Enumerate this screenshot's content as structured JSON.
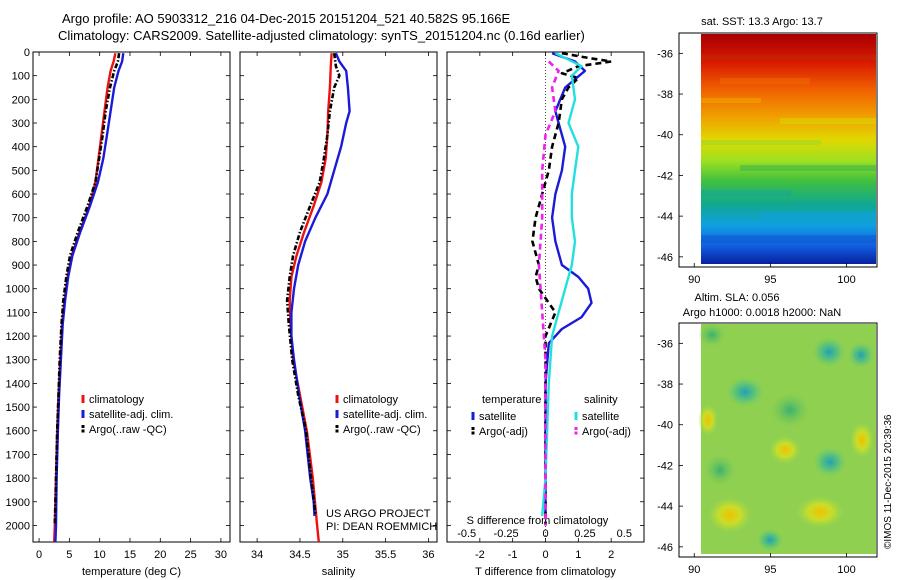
{
  "title": {
    "line1": "Argo profile: AO 5903312_216 04-Dec-2015 20151204_521 40.582S 95.166E",
    "line2": "Climatology: CARS2009. Satellite-adjusted climatology: synTS_20151204.nc (0.16d earlier)"
  },
  "colors": {
    "climatology": "#ee1111",
    "satellite": "#1a1ad8",
    "argo": "#000000",
    "salinity_sat": "#22e0e0",
    "salinity_argo": "#ee22ee"
  },
  "depth_axis": {
    "ticks": [
      0,
      100,
      200,
      300,
      400,
      500,
      600,
      700,
      800,
      900,
      1000,
      1100,
      1200,
      1300,
      1400,
      1500,
      1600,
      1700,
      1800,
      1900,
      2000
    ],
    "range": [
      0,
      2070
    ]
  },
  "chart_data": [
    {
      "type": "line",
      "id": "temperature",
      "xlabel": "temperature (deg C)",
      "xlim": [
        -1,
        31.5
      ],
      "xticks": [
        0,
        5,
        10,
        15,
        20,
        25,
        30
      ],
      "legend": {
        "placement": "bottom-left",
        "entries": [
          "climatology",
          "satellite-adj. clim.",
          "Argo(..raw -QC)"
        ]
      },
      "series": [
        {
          "name": "climatology",
          "color_key": "climatology",
          "style": "solid",
          "points": [
            [
              12.6,
              5
            ],
            [
              12.3,
              40
            ],
            [
              11.8,
              80
            ],
            [
              11.3,
              150
            ],
            [
              10.8,
              250
            ],
            [
              10.3,
              350
            ],
            [
              9.8,
              450
            ],
            [
              9.3,
              550
            ],
            [
              8.3,
              650
            ],
            [
              6.7,
              760
            ],
            [
              5.4,
              860
            ],
            [
              4.7,
              950
            ],
            [
              4.2,
              1050
            ],
            [
              3.8,
              1150
            ],
            [
              3.5,
              1300
            ],
            [
              3.2,
              1450
            ],
            [
              3.0,
              1600
            ],
            [
              2.8,
              1800
            ],
            [
              2.6,
              2000
            ],
            [
              2.5,
              2070
            ]
          ]
        },
        {
          "name": "satellite-adj. clim.",
          "color_key": "satellite",
          "style": "solid",
          "points": [
            [
              13.9,
              5
            ],
            [
              13.7,
              40
            ],
            [
              13.1,
              80
            ],
            [
              12.4,
              150
            ],
            [
              11.8,
              250
            ],
            [
              11.2,
              350
            ],
            [
              10.6,
              450
            ],
            [
              9.7,
              550
            ],
            [
              8.4,
              650
            ],
            [
              6.8,
              760
            ],
            [
              5.5,
              860
            ],
            [
              4.8,
              950
            ],
            [
              4.3,
              1050
            ],
            [
              3.9,
              1150
            ],
            [
              3.6,
              1300
            ],
            [
              3.3,
              1450
            ],
            [
              3.1,
              1600
            ],
            [
              2.9,
              1800
            ],
            [
              2.8,
              2000
            ],
            [
              2.7,
              2070
            ]
          ]
        },
        {
          "name": "Argo(..raw -QC)",
          "color_key": "argo",
          "style": "dashdot",
          "points": [
            [
              13.2,
              5
            ],
            [
              13.0,
              40
            ],
            [
              12.4,
              80
            ],
            [
              11.7,
              150
            ],
            [
              11.0,
              250
            ],
            [
              10.5,
              350
            ],
            [
              9.9,
              450
            ],
            [
              9.3,
              550
            ],
            [
              8.0,
              650
            ],
            [
              6.4,
              760
            ],
            [
              5.1,
              860
            ],
            [
              4.5,
              950
            ],
            [
              4.0,
              1050
            ],
            [
              3.7,
              1150
            ],
            [
              3.4,
              1300
            ],
            [
              3.2,
              1450
            ],
            [
              3.0,
              1600
            ],
            [
              2.8,
              1800
            ],
            [
              2.6,
              2000
            ]
          ]
        }
      ]
    },
    {
      "type": "line",
      "id": "salinity",
      "xlabel": "salinity",
      "xlim": [
        33.8,
        36.1
      ],
      "xticks": [
        34,
        34.5,
        35,
        35.5,
        36
      ],
      "legend": {
        "placement": "bottom-right",
        "entries": [
          "climatology",
          "satellite-adj. clim.",
          "Argo(..raw -QC)"
        ]
      },
      "series": [
        {
          "name": "climatology",
          "color_key": "climatology",
          "style": "solid",
          "points": [
            [
              34.87,
              5
            ],
            [
              34.86,
              60
            ],
            [
              34.85,
              150
            ],
            [
              34.83,
              250
            ],
            [
              34.82,
              350
            ],
            [
              34.8,
              450
            ],
            [
              34.75,
              550
            ],
            [
              34.66,
              650
            ],
            [
              34.55,
              760
            ],
            [
              34.46,
              860
            ],
            [
              34.4,
              950
            ],
            [
              34.38,
              1050
            ],
            [
              34.39,
              1150
            ],
            [
              34.42,
              1300
            ],
            [
              34.5,
              1450
            ],
            [
              34.58,
              1600
            ],
            [
              34.65,
              1800
            ],
            [
              34.7,
              2000
            ],
            [
              34.72,
              2070
            ]
          ]
        },
        {
          "name": "satellite-adj. clim.",
          "color_key": "satellite",
          "style": "solid",
          "points": [
            [
              34.92,
              5
            ],
            [
              34.96,
              40
            ],
            [
              35.04,
              80
            ],
            [
              35.06,
              150
            ],
            [
              35.08,
              250
            ],
            [
              35.04,
              300
            ],
            [
              34.98,
              400
            ],
            [
              34.9,
              500
            ],
            [
              34.82,
              600
            ],
            [
              34.68,
              700
            ],
            [
              34.56,
              800
            ],
            [
              34.48,
              900
            ],
            [
              34.43,
              1000
            ],
            [
              34.4,
              1100
            ],
            [
              34.4,
              1200
            ],
            [
              34.43,
              1300
            ],
            [
              34.49,
              1450
            ],
            [
              34.56,
              1600
            ],
            [
              34.62,
              1800
            ],
            [
              34.66,
              1900
            ],
            [
              34.67,
              1960
            ]
          ]
        },
        {
          "name": "Argo(..raw -QC)",
          "color_key": "argo",
          "style": "dashdot",
          "points": [
            [
              34.9,
              5
            ],
            [
              34.92,
              60
            ],
            [
              34.96,
              100
            ],
            [
              34.9,
              150
            ],
            [
              34.85,
              250
            ],
            [
              34.82,
              350
            ],
            [
              34.78,
              450
            ],
            [
              34.73,
              550
            ],
            [
              34.62,
              650
            ],
            [
              34.5,
              760
            ],
            [
              34.42,
              860
            ],
            [
              34.38,
              950
            ],
            [
              34.35,
              1050
            ],
            [
              34.37,
              1150
            ],
            [
              34.41,
              1300
            ],
            [
              34.48,
              1450
            ],
            [
              34.57,
              1600
            ],
            [
              34.63,
              1800
            ],
            [
              34.68,
              1950
            ]
          ]
        }
      ]
    },
    {
      "type": "line",
      "id": "difference",
      "xlabel": "T difference from climatology",
      "top_axis_label": "S difference from climatology",
      "xlim": [
        -3,
        3
      ],
      "xticks": [
        -2,
        -1,
        0,
        1,
        2
      ],
      "top_ticks": [
        -0.5,
        -0.25,
        0,
        0.25,
        0.5
      ],
      "top_tick_labels": [
        "-0.5",
        "-0.25",
        "0",
        "0.25",
        "0.5"
      ],
      "legend": {
        "placement": "bottom",
        "temperature_header": "temperature",
        "salinity_header": "salinity",
        "entries": [
          "satellite",
          "Argo(-adj)",
          "satellite",
          "Argo(-adj)"
        ]
      },
      "series": [
        {
          "name": "satellite",
          "group": "temperature",
          "color_key": "satellite",
          "style": "solid",
          "points": [
            [
              0.2,
              5
            ],
            [
              0.9,
              40
            ],
            [
              1.2,
              80
            ],
            [
              0.6,
              150
            ],
            [
              0.3,
              250
            ],
            [
              0.4,
              300
            ],
            [
              0.6,
              400
            ],
            [
              0.5,
              500
            ],
            [
              0.3,
              600
            ],
            [
              0.2,
              700
            ],
            [
              0.3,
              800
            ],
            [
              0.5,
              900
            ],
            [
              1.0,
              950
            ],
            [
              1.3,
              1000
            ],
            [
              1.4,
              1060
            ],
            [
              1.1,
              1120
            ],
            [
              0.5,
              1170
            ],
            [
              0.1,
              1230
            ],
            [
              0.0,
              1400
            ],
            [
              0.0,
              1800
            ],
            [
              0.0,
              1960
            ]
          ]
        },
        {
          "name": "Argo(-adj)",
          "group": "temperature",
          "color_key": "argo",
          "style": "dashed",
          "points": [
            [
              0.5,
              5
            ],
            [
              1.3,
              25
            ],
            [
              2.0,
              40
            ],
            [
              1.0,
              60
            ],
            [
              0.5,
              90
            ],
            [
              1.0,
              110
            ],
            [
              0.7,
              150
            ],
            [
              0.5,
              200
            ],
            [
              0.4,
              300
            ],
            [
              0.2,
              400
            ],
            [
              0.1,
              500
            ],
            [
              -0.1,
              600
            ],
            [
              -0.3,
              700
            ],
            [
              -0.4,
              800
            ],
            [
              -0.2,
              900
            ],
            [
              -0.3,
              950
            ],
            [
              -0.2,
              1000
            ],
            [
              0.3,
              1100
            ],
            [
              0.0,
              1200
            ],
            [
              0.0,
              1400
            ],
            [
              0.0,
              2000
            ]
          ]
        },
        {
          "name": "satellite",
          "group": "salinity",
          "color_key": "salinity_sat",
          "style": "solid",
          "points": [
            [
              0.3,
              5
            ],
            [
              1.1,
              60
            ],
            [
              0.8,
              100
            ],
            [
              0.9,
              200
            ],
            [
              0.7,
              300
            ],
            [
              1.0,
              400
            ],
            [
              0.9,
              500
            ],
            [
              0.8,
              600
            ],
            [
              0.8,
              700
            ],
            [
              0.9,
              800
            ],
            [
              0.8,
              900
            ],
            [
              0.6,
              1000
            ],
            [
              0.4,
              1100
            ],
            [
              0.2,
              1200
            ],
            [
              0.1,
              1400
            ],
            [
              0.0,
              1800
            ],
            [
              -0.1,
              1960
            ]
          ]
        },
        {
          "name": "Argo(-adj)",
          "group": "salinity",
          "color_key": "salinity_argo",
          "style": "dashed",
          "points": [
            [
              0.1,
              40
            ],
            [
              0.4,
              80
            ],
            [
              0.2,
              150
            ],
            [
              0.3,
              250
            ],
            [
              0.0,
              350
            ],
            [
              -0.1,
              500
            ],
            [
              -0.1,
              700
            ],
            [
              -0.2,
              900
            ],
            [
              -0.1,
              1100
            ],
            [
              0.0,
              1300
            ],
            [
              0.0,
              1600
            ],
            [
              0.0,
              2000
            ]
          ]
        }
      ]
    }
  ],
  "annotation": {
    "line1": "US ARGO PROJECT",
    "line2": "PI: DEAN ROEMMICH"
  },
  "maps": [
    {
      "id": "sst-map",
      "title": "sat. SST: 13.3 Argo: 13.7",
      "colormap": "jet",
      "xlim": [
        89,
        102
      ],
      "xticks": [
        90,
        95,
        100
      ],
      "ylim": [
        -46.5,
        -35
      ],
      "yticks": [
        -36,
        -38,
        -40,
        -42,
        -44,
        -46
      ],
      "data_extent": {
        "lon": [
          90,
          102
        ],
        "lat": [
          -46.5,
          -35
        ]
      }
    },
    {
      "id": "sla-map",
      "title_line1": "Altim. SLA: 0.056",
      "title_line2": "Argo h1000: 0.0018 h2000: NaN",
      "colormap": "jet",
      "xlim": [
        89,
        102
      ],
      "xticks": [
        90,
        95,
        100
      ],
      "ylim": [
        -46.5,
        -35
      ],
      "yticks": [
        -36,
        -38,
        -40,
        -42,
        -44,
        -46
      ],
      "data_extent": {
        "lon": [
          90,
          102
        ],
        "lat": [
          -46.5,
          -35
        ]
      }
    }
  ],
  "watermark": "©IMOS 11-Dec-2015 20:39:36"
}
